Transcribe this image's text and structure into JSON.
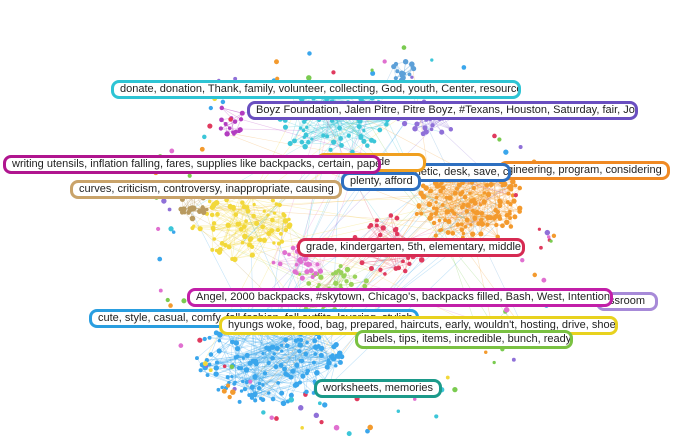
{
  "labels": [
    {
      "text": "gineering, program, considering",
      "color": "#f08a24"
    },
    {
      "text": "aesthetic, desk, save, chic",
      "color": "#2d6fc0"
    },
    {
      "text": "plenty, afford",
      "color": "#2d6fc0"
    },
    {
      "text": "le, code",
      "color": "#f0a020"
    },
    {
      "text": "writing utensils, inflation falling, fares, supplies like backpacks, certain, paper",
      "color": "#b0158f"
    },
    {
      "text": "curves, criticism, controversy, inappropriate, causing",
      "color": "#c9a36a"
    },
    {
      "text": "donate, donation, Thank, family, volunteer, collecting, God, youth, Center, resources",
      "color": "#2ec4d4"
    },
    {
      "text": "Boyz Foundation, Jalen Pitre, Pitre Boyz, #Texans, Houston, Saturday, fair, Join",
      "color": "#6a4fc0"
    },
    {
      "text": "grade, kindergarten, 5th, elementary, middle",
      "color": "#d62a52"
    },
    {
      "text": "ssroom",
      "color": "#a78ad8"
    },
    {
      "text": "cute, style, casual, comfy, fall fashion, fall outfits, layering, stylish, denim",
      "color": "#2a9ee0"
    },
    {
      "text": "Angel, 2000 backpacks, #skytown, Chicago's, backpacks filled, Bash, West, Intentional",
      "color": "#c21fa8"
    },
    {
      "text": "hyungs woke, food, bag, prepared, haircuts, early, wouldn't, hosting, drive, shoes",
      "color": "#e8d21e"
    },
    {
      "text": "labels, tips, items, incredible, bunch, ready",
      "color": "#7ac142"
    },
    {
      "text": "worksheets, memories",
      "color": "#1c9a8a"
    }
  ]
}
